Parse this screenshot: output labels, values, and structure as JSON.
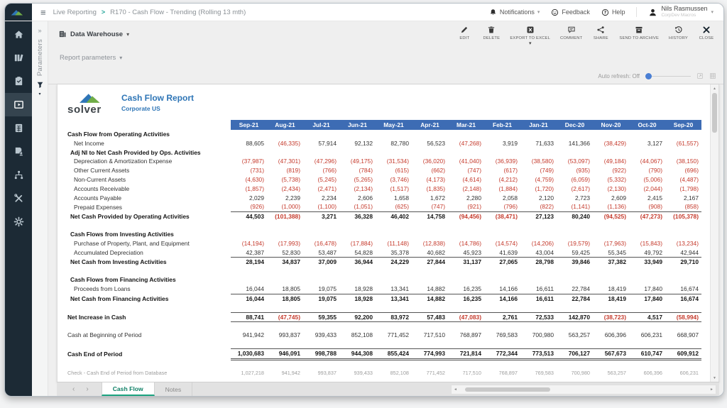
{
  "topbar": {
    "breadcrumb": {
      "section": "Live Reporting",
      "separator": ">",
      "report": "R170 - Cash Flow - Trending (Rolling 13 mth)"
    },
    "notifications_label": "Notifications",
    "feedback_label": "Feedback",
    "help_label": "Help",
    "user": {
      "name": "Nils Rasmussen",
      "subtitle": "CorpDev Macros"
    }
  },
  "sidebar": {
    "items": [
      {
        "name": "home",
        "icon": "home",
        "active": false
      },
      {
        "name": "library",
        "icon": "shelf",
        "active": false
      },
      {
        "name": "tasks",
        "icon": "clipboard",
        "active": false
      },
      {
        "name": "live-reporting",
        "icon": "live",
        "active": true
      },
      {
        "name": "budgeting",
        "icon": "calc",
        "active": false
      },
      {
        "name": "user-documents",
        "icon": "docuser",
        "active": false
      },
      {
        "name": "integrations",
        "icon": "nodes",
        "active": false
      },
      {
        "name": "admin-tools",
        "icon": "tools",
        "active": false
      },
      {
        "name": "settings",
        "icon": "gear",
        "active": false
      }
    ]
  },
  "parameters": {
    "collapsed_label": "Parameters",
    "report_parameters_label": "Report parameters"
  },
  "toolbar": {
    "source": {
      "label": "Data Warehouse"
    },
    "buttons": [
      {
        "name": "edit",
        "icon": "edit",
        "label": "EDIT",
        "has_caret": false
      },
      {
        "name": "delete",
        "icon": "delete",
        "label": "DELETE",
        "has_caret": false
      },
      {
        "name": "export-to-excel",
        "icon": "excel",
        "label": "EXPORT TO EXCEL",
        "has_caret": true
      },
      {
        "name": "comment",
        "icon": "comment",
        "label": "COMMENT",
        "has_caret": false
      },
      {
        "name": "share",
        "icon": "share",
        "label": "SHARE",
        "has_caret": false
      },
      {
        "name": "send-to-archive",
        "icon": "archive",
        "label": "SEND TO ARCHIVE",
        "has_caret": false
      },
      {
        "name": "history",
        "icon": "history",
        "label": "HISTORY",
        "has_caret": false
      },
      {
        "name": "close",
        "icon": "close",
        "label": "CLOSE",
        "has_caret": false
      }
    ]
  },
  "auto_refresh": {
    "label": "Auto refresh:",
    "state": "Off"
  },
  "report": {
    "logo_text": "solver",
    "title": "Cash Flow Report",
    "subtitle": "Corporate US",
    "table": {
      "months": [
        "Sep-21",
        "Aug-21",
        "Jul-21",
        "Jun-21",
        "May-21",
        "Apr-21",
        "Mar-21",
        "Feb-21",
        "Jan-21",
        "Dec-20",
        "Nov-20",
        "Oct-20",
        "Sep-20"
      ],
      "rows": [
        {
          "label": "Cash Flow from Operating Activities",
          "style": "section",
          "indent": 0
        },
        {
          "label": "Net Income",
          "style": "item",
          "indent": 2,
          "values": [
            "88,605",
            "(46,335)",
            "57,914",
            "92,132",
            "82,780",
            "56,523",
            "(47,268)",
            "3,919",
            "71,633",
            "141,366",
            "(38,429)",
            "3,127",
            "(61,557)"
          ]
        },
        {
          "label": "Adj NI to Net Cash Provided by Ops. Activities",
          "style": "section",
          "indent": 1
        },
        {
          "label": "Depreciation & Amortization Expense",
          "style": "item",
          "indent": 2,
          "values": [
            "(37,987)",
            "(47,301)",
            "(47,296)",
            "(49,175)",
            "(31,534)",
            "(36,020)",
            "(41,040)",
            "(36,939)",
            "(38,580)",
            "(53,097)",
            "(49,184)",
            "(44,067)",
            "(38,150)"
          ]
        },
        {
          "label": "Other Current Assets",
          "style": "item",
          "indent": 2,
          "values": [
            "(731)",
            "(819)",
            "(766)",
            "(784)",
            "(615)",
            "(662)",
            "(747)",
            "(617)",
            "(749)",
            "(935)",
            "(922)",
            "(790)",
            "(696)"
          ]
        },
        {
          "label": "Non-Current Assets",
          "style": "item",
          "indent": 2,
          "values": [
            "(4,630)",
            "(5,738)",
            "(5,245)",
            "(5,265)",
            "(3,746)",
            "(4,173)",
            "(4,614)",
            "(4,212)",
            "(4,759)",
            "(6,059)",
            "(5,332)",
            "(5,006)",
            "(4,487)"
          ]
        },
        {
          "label": "Accounts Receivable",
          "style": "item",
          "indent": 2,
          "values": [
            "(1,857)",
            "(2,434)",
            "(2,471)",
            "(2,134)",
            "(1,517)",
            "(1,835)",
            "(2,148)",
            "(1,884)",
            "(1,720)",
            "(2,617)",
            "(2,130)",
            "(2,044)",
            "(1,798)"
          ]
        },
        {
          "label": "Accounts Payable",
          "style": "item",
          "indent": 2,
          "values": [
            "2,029",
            "2,239",
            "2,234",
            "2,606",
            "1,658",
            "1,672",
            "2,280",
            "2,058",
            "2,120",
            "2,723",
            "2,609",
            "2,415",
            "2,167"
          ]
        },
        {
          "label": "Prepaid Expenses",
          "style": "item",
          "indent": 2,
          "values": [
            "(926)",
            "(1,000)",
            "(1,100)",
            "(1,051)",
            "(625)",
            "(747)",
            "(921)",
            "(796)",
            "(822)",
            "(1,141)",
            "(1,136)",
            "(908)",
            "(858)"
          ]
        },
        {
          "label": "Net Cash Provided by Operating Activities",
          "style": "total",
          "indent": 1,
          "values": [
            "44,503",
            "(101,388)",
            "3,271",
            "36,328",
            "46,402",
            "14,758",
            "(94,456)",
            "(38,471)",
            "27,123",
            "80,240",
            "(94,525)",
            "(47,273)",
            "(105,378)"
          ]
        },
        {
          "style": "spacer"
        },
        {
          "label": "Cash Flows from Investing Activities",
          "style": "section",
          "indent": 1
        },
        {
          "label": "Purchase of Property, Plant, and Equipment",
          "style": "item",
          "indent": 2,
          "values": [
            "(14,194)",
            "(17,993)",
            "(16,478)",
            "(17,884)",
            "(11,148)",
            "(12,838)",
            "(14,786)",
            "(14,574)",
            "(14,206)",
            "(19,579)",
            "(17,963)",
            "(15,843)",
            "(13,234)"
          ]
        },
        {
          "label": "Accumulated Depreciation",
          "style": "item",
          "indent": 2,
          "values": [
            "42,387",
            "52,830",
            "53,487",
            "54,828",
            "35,378",
            "40,682",
            "45,923",
            "41,639",
            "43,004",
            "59,425",
            "55,345",
            "49,792",
            "42,944"
          ]
        },
        {
          "label": "Net Cash from Investing Activities",
          "style": "total",
          "indent": 1,
          "values": [
            "28,194",
            "34,837",
            "37,009",
            "36,944",
            "24,229",
            "27,844",
            "31,137",
            "27,065",
            "28,798",
            "39,846",
            "37,382",
            "33,949",
            "29,710"
          ]
        },
        {
          "style": "spacer"
        },
        {
          "label": "Cash Flows from Financing Activities",
          "style": "section",
          "indent": 1
        },
        {
          "label": "Proceeds from Loans",
          "style": "item",
          "indent": 2,
          "values": [
            "16,044",
            "18,805",
            "19,075",
            "18,928",
            "13,341",
            "14,882",
            "16,235",
            "14,166",
            "16,611",
            "22,784",
            "18,419",
            "17,840",
            "16,674"
          ]
        },
        {
          "label": "Net Cash from Financing Activities",
          "style": "total",
          "indent": 1,
          "values": [
            "16,044",
            "18,805",
            "19,075",
            "18,928",
            "13,341",
            "14,882",
            "16,235",
            "14,166",
            "16,611",
            "22,784",
            "18,419",
            "17,840",
            "16,674"
          ]
        },
        {
          "style": "spacer"
        },
        {
          "label": "Net Increase in Cash",
          "style": "net",
          "indent": 0,
          "values": [
            "88,741",
            "(47,745)",
            "59,355",
            "92,200",
            "83,972",
            "57,483",
            "(47,083)",
            "2,761",
            "72,533",
            "142,870",
            "(38,723)",
            "4,517",
            "(58,994)"
          ]
        },
        {
          "style": "spacer"
        },
        {
          "label": "Cash at Beginning of Period",
          "style": "item",
          "indent": 0,
          "values": [
            "941,942",
            "993,837",
            "939,433",
            "852,108",
            "771,452",
            "717,510",
            "768,897",
            "769,583",
            "700,980",
            "563,257",
            "606,396",
            "606,231",
            "668,907"
          ]
        },
        {
          "style": "spacer"
        },
        {
          "label": "Cash End of Period",
          "style": "grand",
          "indent": 0,
          "values": [
            "1,030,683",
            "946,091",
            "998,788",
            "944,308",
            "855,424",
            "774,993",
            "721,814",
            "772,344",
            "773,513",
            "706,127",
            "567,673",
            "610,747",
            "609,912"
          ]
        },
        {
          "style": "spacer"
        },
        {
          "label": "Check - Cash End of Period from Database",
          "style": "check",
          "indent": 0,
          "values": [
            "1,027,218",
            "941,942",
            "993,837",
            "939,433",
            "852,108",
            "771,452",
            "717,510",
            "768,897",
            "769,583",
            "700,980",
            "563,257",
            "606,396",
            "606,231"
          ]
        }
      ]
    }
  },
  "tabs": {
    "items": [
      {
        "label": "Cash Flow",
        "active": true
      },
      {
        "label": "Notes",
        "active": false
      }
    ]
  },
  "colors": {
    "header_blue": "#3d6cb4",
    "negative_red": "#c53a2c",
    "title_blue": "#2e75b6",
    "logo_blue": "#2e75b6",
    "logo_green": "#70ad47",
    "accent_teal": "#1ba37e",
    "sidebar_bg": "#1c2a35"
  }
}
